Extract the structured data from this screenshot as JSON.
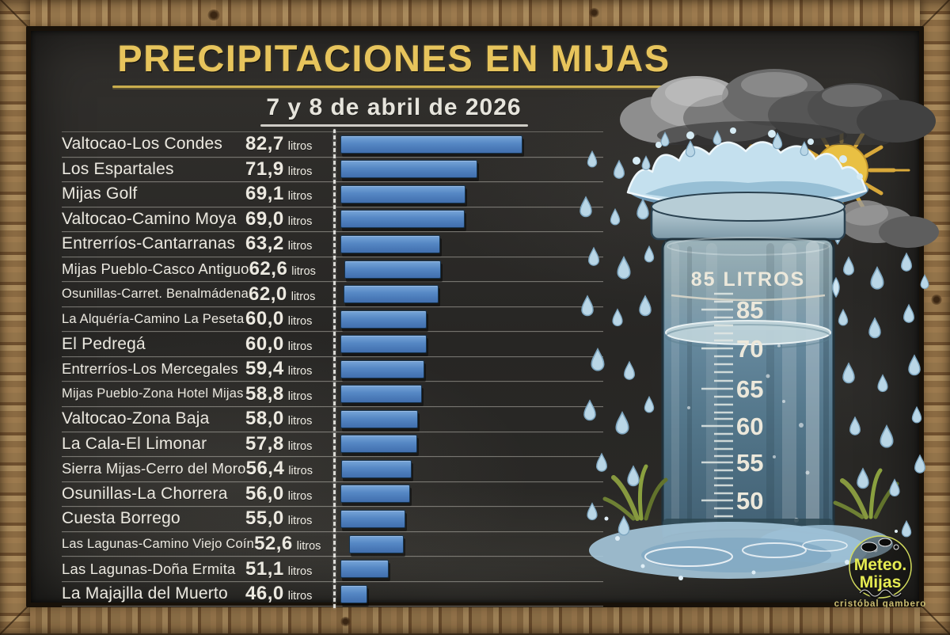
{
  "header": {
    "title": "PRECIPITACIONES EN MIJAS",
    "subtitle": "7 y 8 de abril de 2026"
  },
  "chart_data": {
    "type": "bar",
    "orientation": "horizontal",
    "title": "PRECIPITACIONES EN MIJAS",
    "subtitle": "7 y 8 de abril de 2026",
    "unit": "litros",
    "bar_baseline": 40,
    "value_range": [
      46.0,
      82.7
    ],
    "rows": [
      {
        "location": "Valtocao-Los Condes",
        "display": "82,7",
        "value": 82.7
      },
      {
        "location": "Los Espartales",
        "display": "71,9",
        "value": 71.9
      },
      {
        "location": "Mijas Golf",
        "display": "69,1",
        "value": 69.1
      },
      {
        "location": "Valtocao-Camino Moya",
        "display": "69,0",
        "value": 69.0
      },
      {
        "location": "Entrerríos-Cantarranas",
        "display": "63,2",
        "value": 63.2
      },
      {
        "location": "Mijas Pueblo-Casco Antiguo",
        "display": "62,6",
        "value": 62.6
      },
      {
        "location": "Osunillas-Carret. Benalmádena",
        "display": "62,0",
        "value": 62.0
      },
      {
        "location": "La Alquéría-Camino La Peseta",
        "display": "60,0",
        "value": 60.0
      },
      {
        "location": "El Pedregá",
        "display": "60,0",
        "value": 60.0
      },
      {
        "location": "Entrerríos-Los Mercegales",
        "display": "59,4",
        "value": 59.4
      },
      {
        "location": "Mijas Pueblo-Zona Hotel Mijas",
        "display": "58,8",
        "value": 58.8
      },
      {
        "location": "Valtocao-Zona Baja",
        "display": "58,0",
        "value": 58.0
      },
      {
        "location": "La Cala-El Limonar",
        "display": "57,8",
        "value": 57.8
      },
      {
        "location": "Sierra Mijas-Cerro del Moro",
        "display": "56,4",
        "value": 56.4
      },
      {
        "location": "Osunillas-La Chorrera",
        "display": "56,0",
        "value": 56.0
      },
      {
        "location": "Cuesta Borrego",
        "display": "55,0",
        "value": 55.0
      },
      {
        "location": "Las Lagunas-Camino Viejo Coín",
        "display": "52,6",
        "value": 52.6
      },
      {
        "location": "Las Lagunas-Doña Ermita",
        "display": "51,1",
        "value": 51.1
      },
      {
        "location": "La Majajlla del Muerto",
        "display": "46,0",
        "value": 46.0
      }
    ]
  },
  "illustration": {
    "gauge": {
      "capacity_label": "85 LITROS",
      "scale": [
        "85",
        "70",
        "65",
        "60",
        "55",
        "50"
      ]
    },
    "logo": {
      "line1": "Meteo.",
      "line2": "Mijas",
      "credit": "cristóbal gambero"
    }
  },
  "colors": {
    "board": "#2b2a27",
    "frame_wood": "#8a6a42",
    "title_yellow": "#e7c45c",
    "chalk_white": "#ece9e0",
    "bar_blue": "#5587c4",
    "water_blue": "#bcd9e9",
    "sun_yellow": "#e9c043"
  }
}
